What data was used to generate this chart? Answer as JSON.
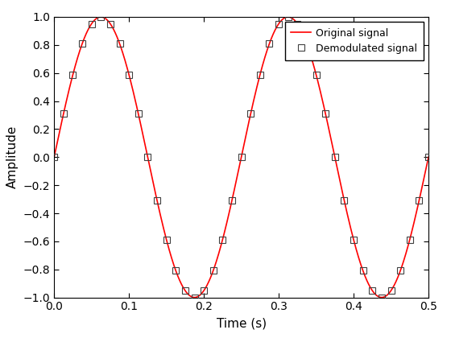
{
  "title": "",
  "xlabel": "Time (s)",
  "ylabel": "Amplitude",
  "xlim": [
    0,
    0.5
  ],
  "ylim": [
    -1,
    1
  ],
  "signal_freq": 4,
  "t_continuous_num": 2000,
  "t_samples_num": 41,
  "line_color": "#ff0000",
  "marker_edgecolor": "#404040",
  "marker_facecolor": "none",
  "legend_original": "Original signal",
  "legend_demodulated": "Demodulated signal",
  "xticks": [
    0,
    0.1,
    0.2,
    0.3,
    0.4,
    0.5
  ],
  "yticks": [
    -1,
    -0.8,
    -0.6,
    -0.4,
    -0.2,
    0,
    0.2,
    0.4,
    0.6,
    0.8,
    1
  ],
  "figsize": [
    5.6,
    4.2
  ],
  "dpi": 100,
  "linewidth": 1.2,
  "marker_size": 6,
  "marker_linewidth": 0.8,
  "tick_labelsize": 10,
  "axis_labelsize": 11,
  "legend_fontsize": 9
}
